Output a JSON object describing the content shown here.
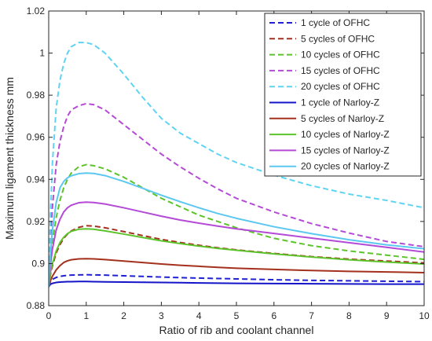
{
  "chart_data": {
    "type": "line",
    "xlabel": "Ratio of rib and coolant channel",
    "ylabel": "Maximum ligament thickness mm",
    "xlim": [
      0,
      10
    ],
    "ylim": [
      0.88,
      1.02
    ],
    "xticks": [
      "0",
      "1",
      "2",
      "3",
      "4",
      "5",
      "6",
      "7",
      "8",
      "9",
      "10"
    ],
    "yticks": [
      "0.88",
      "0.9",
      "0.92",
      "0.94",
      "0.96",
      "0.98",
      "1",
      "1.02"
    ],
    "grid": false,
    "legend_position": "top-right",
    "x": [
      0,
      0.05,
      0.1,
      0.2,
      0.3,
      0.4,
      0.5,
      0.6,
      0.8,
      1,
      1.2,
      1.5,
      2,
      2.5,
      3,
      3.5,
      4,
      4.5,
      5,
      6,
      7,
      8,
      9,
      10
    ],
    "series": [
      {
        "name": "1 cycle of OFHC",
        "color": "#1f1fd6",
        "dash": true,
        "values": [
          0.889,
          0.8915,
          0.8925,
          0.8934,
          0.8939,
          0.8942,
          0.8944,
          0.8945,
          0.8946,
          0.8947,
          0.8946,
          0.8945,
          0.8942,
          0.8939,
          0.8936,
          0.8933,
          0.8931,
          0.8929,
          0.8927,
          0.8923,
          0.892,
          0.8918,
          0.8916,
          0.8914
        ]
      },
      {
        "name": "5 cycles of OFHC",
        "color": "#a3311e",
        "dash": true,
        "values": [
          0.889,
          0.895,
          0.899,
          0.905,
          0.909,
          0.912,
          0.914,
          0.9155,
          0.9172,
          0.918,
          0.9178,
          0.917,
          0.9152,
          0.9133,
          0.9115,
          0.91,
          0.9087,
          0.9075,
          0.9065,
          0.9048,
          0.9033,
          0.9021,
          0.9012,
          0.9003
        ]
      },
      {
        "name": "10 cycles of OFHC",
        "color": "#5cc42a",
        "dash": true,
        "values": [
          0.889,
          0.902,
          0.91,
          0.922,
          0.93,
          0.936,
          0.94,
          0.943,
          0.946,
          0.947,
          0.9465,
          0.945,
          0.941,
          0.936,
          0.931,
          0.927,
          0.923,
          0.92,
          0.917,
          0.912,
          0.9085,
          0.906,
          0.904,
          0.902
        ]
      },
      {
        "name": "15 cycles of OFHC",
        "color": "#b44ad6",
        "dash": true,
        "values": [
          0.889,
          0.912,
          0.927,
          0.947,
          0.958,
          0.965,
          0.97,
          0.973,
          0.975,
          0.976,
          0.9755,
          0.973,
          0.966,
          0.959,
          0.952,
          0.946,
          0.9405,
          0.9355,
          0.931,
          0.9245,
          0.919,
          0.9145,
          0.9105,
          0.908
        ]
      },
      {
        "name": "20 cycles of OFHC",
        "color": "#5fd4f2",
        "dash": true,
        "values": [
          0.889,
          0.925,
          0.948,
          0.974,
          0.987,
          0.995,
          1.0,
          1.003,
          1.005,
          1.005,
          1.004,
          1.0,
          0.99,
          0.979,
          0.969,
          0.962,
          0.957,
          0.952,
          0.948,
          0.942,
          0.937,
          0.933,
          0.93,
          0.9265
        ]
      },
      {
        "name": "1 cycle of Narloy-Z",
        "color": "#1414c8",
        "dash": false,
        "values": [
          0.889,
          0.8902,
          0.8906,
          0.891,
          0.8912,
          0.8913,
          0.8914,
          0.8914,
          0.8915,
          0.8915,
          0.8914,
          0.8913,
          0.8912,
          0.8911,
          0.891,
          0.8909,
          0.8908,
          0.8907,
          0.8906,
          0.8905,
          0.8904,
          0.8903,
          0.8902,
          0.8902
        ]
      },
      {
        "name": "5 cycles of Narloy-Z",
        "color": "#a3311e",
        "dash": false,
        "values": [
          0.889,
          0.892,
          0.894,
          0.897,
          0.899,
          0.9005,
          0.9013,
          0.9018,
          0.9022,
          0.9023,
          0.9022,
          0.9019,
          0.9012,
          0.9005,
          0.8998,
          0.8992,
          0.8987,
          0.8982,
          0.8978,
          0.8972,
          0.8967,
          0.8963,
          0.896,
          0.8957
        ]
      },
      {
        "name": "10 cycles of Narloy-Z",
        "color": "#5cc42a",
        "dash": false,
        "values": [
          0.889,
          0.896,
          0.9,
          0.906,
          0.91,
          0.9125,
          0.9142,
          0.9153,
          0.9163,
          0.9165,
          0.9163,
          0.9155,
          0.914,
          0.9124,
          0.9108,
          0.9095,
          0.9083,
          0.9072,
          0.9063,
          0.9046,
          0.9031,
          0.9018,
          0.9007,
          0.8998
        ]
      },
      {
        "name": "15 cycles of Narloy-Z",
        "color": "#b44ad6",
        "dash": false,
        "values": [
          0.889,
          0.9,
          0.907,
          0.916,
          0.921,
          0.9245,
          0.9265,
          0.9277,
          0.9289,
          0.9292,
          0.929,
          0.9283,
          0.9265,
          0.9245,
          0.9225,
          0.9207,
          0.9192,
          0.9178,
          0.9165,
          0.9143,
          0.9121,
          0.9099,
          0.9077,
          0.9055
        ]
      },
      {
        "name": "20 cycles of Narloy-Z",
        "color": "#5cc8f0",
        "dash": false,
        "values": [
          0.889,
          0.906,
          0.916,
          0.929,
          0.936,
          0.939,
          0.9407,
          0.9417,
          0.9427,
          0.943,
          0.9428,
          0.9418,
          0.939,
          0.9358,
          0.9325,
          0.9294,
          0.9265,
          0.9238,
          0.9215,
          0.9175,
          0.9142,
          0.9113,
          0.9089,
          0.907
        ]
      }
    ]
  }
}
